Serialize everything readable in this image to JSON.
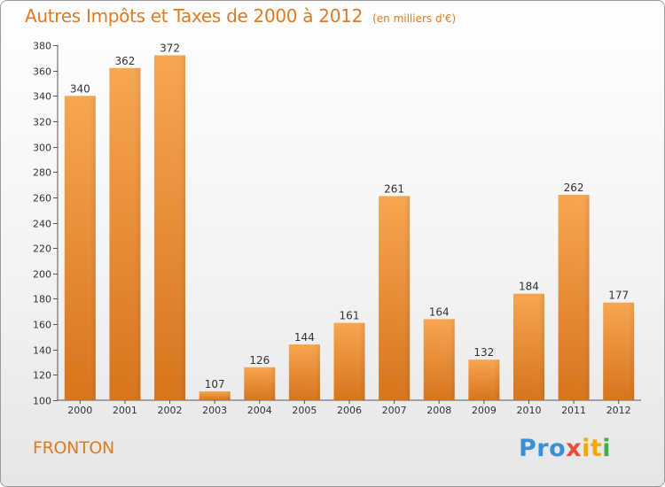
{
  "header": {
    "title": "Autres Impôts et Taxes de 2000 à 2012",
    "subtitle": "(en milliers d'€)"
  },
  "commune": "FRONTON",
  "logo": {
    "text": "Proxiti",
    "parts": [
      "Pro",
      "x",
      "it",
      "i"
    ],
    "colors": [
      "#3b8fd6",
      "#e94b3c",
      "#f2a900",
      "#3fae49"
    ]
  },
  "colors": {
    "bar_top": "#f7a650",
    "bar_bottom": "#d8741c",
    "accent": "#e07a22"
  },
  "chart_data": {
    "type": "bar",
    "title": "Autres Impôts et Taxes de 2000 à 2012",
    "subtitle": "(en milliers d'€)",
    "categories": [
      "2000",
      "2001",
      "2002",
      "2003",
      "2004",
      "2005",
      "2006",
      "2007",
      "2008",
      "2009",
      "2010",
      "2011",
      "2012"
    ],
    "values": [
      340,
      362,
      372,
      107,
      126,
      144,
      161,
      261,
      164,
      132,
      184,
      262,
      177
    ],
    "ylim": [
      100,
      380
    ],
    "yticks": [
      100,
      120,
      140,
      160,
      180,
      200,
      220,
      240,
      260,
      280,
      300,
      320,
      340,
      360,
      380
    ],
    "grid": false,
    "legend": "none"
  }
}
